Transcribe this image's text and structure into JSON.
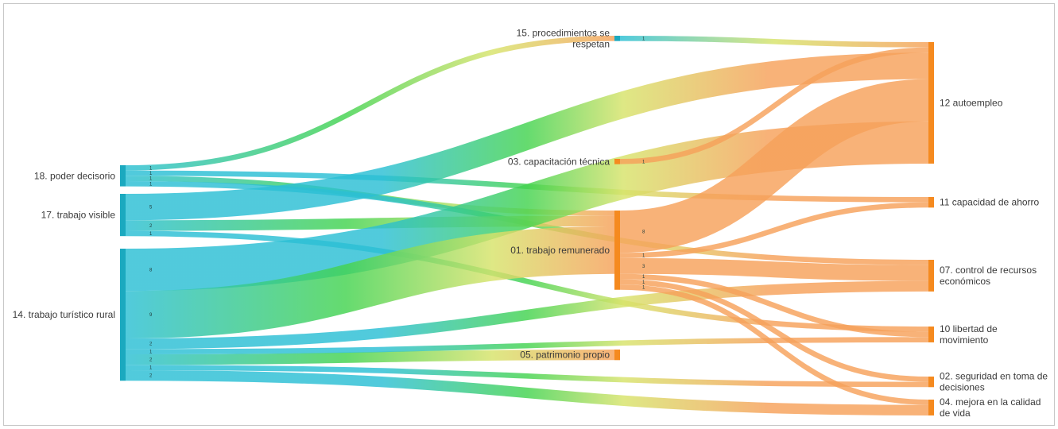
{
  "chart_data": {
    "type": "sankey",
    "title": "",
    "colors": {
      "source_teal": "#2bbfd4",
      "mid_green": "#43d34f",
      "mid_yellow": "#d7e36a",
      "target_orange": "#f6a15a",
      "node_teal": "#1ba9bf",
      "node_orange": "#f58a1f"
    },
    "nodes": [
      {
        "id": "n18",
        "label": "18. poder decisorio",
        "column": 0,
        "label_side": "left"
      },
      {
        "id": "n17",
        "label": "17. trabajo visible",
        "column": 0,
        "label_side": "left"
      },
      {
        "id": "n14",
        "label": "14. trabajo turístico rural",
        "column": 0,
        "label_side": "left"
      },
      {
        "id": "n15",
        "label": "15. procedimientos se respetan",
        "column": 1,
        "label_side": "left"
      },
      {
        "id": "n03",
        "label": "03. capacitación técnica",
        "column": 1,
        "label_side": "left"
      },
      {
        "id": "n01",
        "label": "01. trabajo remunerado",
        "column": 1,
        "label_side": "left"
      },
      {
        "id": "n05",
        "label": "05. patrimonio propio",
        "column": 1,
        "label_side": "left"
      },
      {
        "id": "n12",
        "label": "12 autoempleo",
        "column": 2,
        "label_side": "right"
      },
      {
        "id": "n11",
        "label": "11 capacidad de ahorro",
        "column": 2,
        "label_side": "right"
      },
      {
        "id": "n07",
        "label": "07. control de recursos económicos",
        "column": 2,
        "label_side": "right"
      },
      {
        "id": "n10",
        "label": "10 libertad de movimiento",
        "column": 2,
        "label_side": "right"
      },
      {
        "id": "n02",
        "label": "02. seguridad en toma de decisiones",
        "column": 2,
        "label_side": "right"
      },
      {
        "id": "n04",
        "label": "04. mejora en la calidad de vida",
        "column": 2,
        "label_side": "right"
      }
    ],
    "links": [
      {
        "source": "n18",
        "target": "n15",
        "value": 1,
        "label": "1"
      },
      {
        "source": "n18",
        "target": "n11",
        "value": 1,
        "label": "1"
      },
      {
        "source": "n18",
        "target": "n01",
        "value": 1,
        "label": "1"
      },
      {
        "source": "n18",
        "target": "n07",
        "value": 1,
        "label": "1"
      },
      {
        "source": "n17",
        "target": "n12",
        "value": 5,
        "label": "5"
      },
      {
        "source": "n17",
        "target": "n01",
        "value": 2,
        "label": "2"
      },
      {
        "source": "n17",
        "target": "n10",
        "value": 1,
        "label": "1"
      },
      {
        "source": "n14",
        "target": "n12",
        "value": 8,
        "label": "8"
      },
      {
        "source": "n14",
        "target": "n01",
        "value": 9,
        "label": "9"
      },
      {
        "source": "n14",
        "target": "n07",
        "value": 2,
        "label": "2"
      },
      {
        "source": "n14",
        "target": "n05",
        "value": 2,
        "label": "2"
      },
      {
        "source": "n14",
        "target": "n10",
        "value": 1,
        "label": "1"
      },
      {
        "source": "n14",
        "target": "n02",
        "value": 1,
        "label": "1"
      },
      {
        "source": "n14",
        "target": "n04",
        "value": 2,
        "label": "2"
      },
      {
        "source": "n15",
        "target": "n12",
        "value": 1,
        "label": "1"
      },
      {
        "source": "n03",
        "target": "n12",
        "value": 1,
        "label": "1"
      },
      {
        "source": "n01",
        "target": "n12",
        "value": 8,
        "label": "8"
      },
      {
        "source": "n01",
        "target": "n11",
        "value": 1,
        "label": "1"
      },
      {
        "source": "n01",
        "target": "n07",
        "value": 3,
        "label": "3"
      },
      {
        "source": "n01",
        "target": "n10",
        "value": 1,
        "label": "1"
      },
      {
        "source": "n01",
        "target": "n04",
        "value": 1,
        "label": "1"
      },
      {
        "source": "n01",
        "target": "n02",
        "value": 1,
        "label": "1"
      }
    ]
  }
}
